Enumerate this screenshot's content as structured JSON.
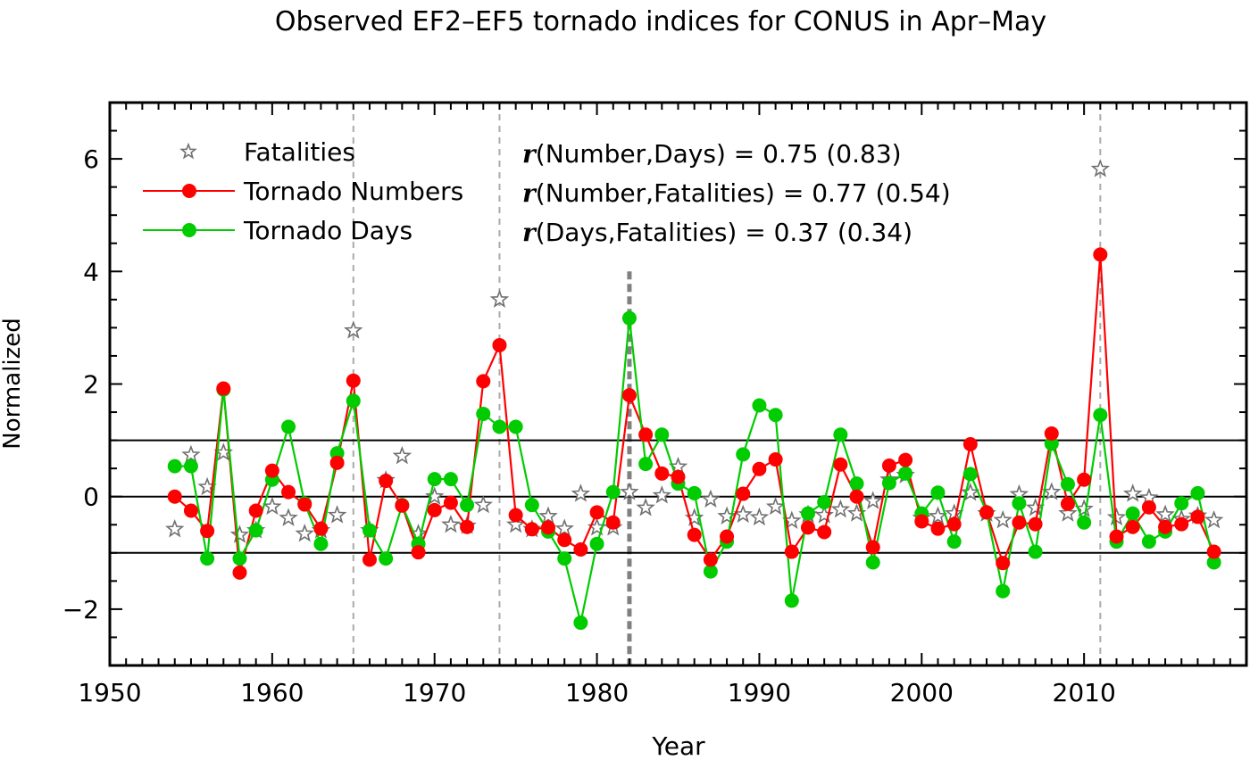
{
  "chart_data": {
    "type": "line",
    "title": "Observed EF2–EF5 tornado indices for CONUS in Apr–May",
    "xlabel": "Year",
    "ylabel": "Normalized",
    "xlim": [
      1950,
      2020
    ],
    "ylim": [
      -3,
      7
    ],
    "x_ticks": [
      1950,
      1960,
      1970,
      1980,
      1990,
      2000,
      2010
    ],
    "y_ticks": [
      -2,
      0,
      2,
      4,
      6
    ],
    "y_tick_labels": [
      "−2",
      "0",
      "2",
      "4",
      "6"
    ],
    "reference_lines_y": [
      -1,
      0,
      1
    ],
    "marked_years": [
      1965,
      1974,
      2011
    ],
    "highlight_year": 1982,
    "legend_placement": "top-left",
    "x": [
      1954,
      1955,
      1956,
      1957,
      1958,
      1959,
      1960,
      1961,
      1962,
      1963,
      1964,
      1965,
      1966,
      1967,
      1968,
      1969,
      1970,
      1971,
      1972,
      1973,
      1974,
      1975,
      1976,
      1977,
      1978,
      1979,
      1980,
      1981,
      1982,
      1983,
      1984,
      1985,
      1986,
      1987,
      1988,
      1989,
      1990,
      1991,
      1992,
      1993,
      1994,
      1995,
      1996,
      1997,
      1998,
      1999,
      2000,
      2001,
      2002,
      2003,
      2004,
      2005,
      2006,
      2007,
      2008,
      2009,
      2010,
      2011,
      2012,
      2013,
      2014,
      2015,
      2016,
      2017,
      2018
    ],
    "series": [
      {
        "name": "Fatalities",
        "style": "star",
        "color": "#707070",
        "values": [
          -0.58,
          0.74,
          0.17,
          0.78,
          -0.68,
          -0.6,
          -0.18,
          -0.38,
          -0.66,
          -0.6,
          -0.33,
          2.95,
          -0.6,
          0.29,
          0.72,
          -0.66,
          0.0,
          -0.5,
          -0.52,
          -0.15,
          3.5,
          -0.5,
          -0.58,
          -0.35,
          -0.57,
          0.05,
          -0.55,
          -0.55,
          0.08,
          -0.2,
          0.02,
          0.53,
          -0.38,
          -0.05,
          -0.35,
          -0.32,
          -0.37,
          -0.18,
          -0.43,
          -0.32,
          -0.33,
          -0.23,
          -0.3,
          -0.08,
          0.3,
          0.38,
          -0.38,
          -0.35,
          -0.3,
          0.07,
          -0.3,
          -0.42,
          0.04,
          -0.2,
          0.08,
          -0.3,
          -0.22,
          5.82,
          -0.37,
          0.05,
          -0.02,
          -0.32,
          -0.4,
          -0.34,
          -0.42
        ]
      },
      {
        "name": "Tornado Numbers",
        "style": "line-dot",
        "color": "#ff0000",
        "values": [
          0.0,
          -0.25,
          -0.61,
          1.92,
          -1.35,
          -0.25,
          0.46,
          0.08,
          -0.14,
          -0.57,
          0.6,
          2.06,
          -1.12,
          0.28,
          -0.16,
          -0.99,
          -0.24,
          -0.11,
          -0.54,
          2.05,
          2.69,
          -0.33,
          -0.58,
          -0.55,
          -0.77,
          -0.94,
          -0.28,
          -0.46,
          1.8,
          1.1,
          0.41,
          0.35,
          -0.68,
          -1.12,
          -0.71,
          0.05,
          0.49,
          0.66,
          -0.98,
          -0.55,
          -0.63,
          0.57,
          0.0,
          -0.9,
          0.55,
          0.65,
          -0.44,
          -0.57,
          -0.49,
          0.93,
          -0.28,
          -1.18,
          -0.46,
          -0.49,
          1.12,
          -0.13,
          0.3,
          4.3,
          -0.71,
          -0.54,
          -0.19,
          -0.54,
          -0.49,
          -0.36,
          -0.98
        ]
      },
      {
        "name": "Tornado Days",
        "style": "line-dot",
        "color": "#00cc00",
        "values": [
          0.54,
          0.54,
          -1.1,
          1.9,
          -1.1,
          -0.6,
          0.3,
          1.24,
          -0.12,
          -0.84,
          0.77,
          1.7,
          -0.6,
          -1.1,
          -0.15,
          -0.84,
          0.31,
          0.31,
          -0.15,
          1.47,
          1.24,
          1.24,
          -0.15,
          -0.62,
          -1.1,
          -2.24,
          -0.84,
          0.08,
          3.17,
          0.58,
          1.1,
          0.23,
          0.06,
          -1.33,
          -0.8,
          0.75,
          1.62,
          1.45,
          -1.85,
          -0.3,
          -0.1,
          1.1,
          0.23,
          -1.17,
          0.24,
          0.41,
          -0.3,
          0.07,
          -0.8,
          0.4,
          -0.28,
          -1.68,
          -0.12,
          -0.98,
          0.94,
          0.22,
          -0.46,
          1.45,
          -0.8,
          -0.3,
          -0.8,
          -0.62,
          -0.12,
          0.06,
          -1.17
        ]
      }
    ],
    "annotations": [
      {
        "symbol": "r",
        "text": "(Number,Days) = 0.75 (0.83)"
      },
      {
        "symbol": "r",
        "text": "(Number,Fatalities) = 0.77 (0.54)"
      },
      {
        "symbol": "r",
        "text": "(Days,Fatalities) = 0.37 (0.34)"
      }
    ]
  }
}
